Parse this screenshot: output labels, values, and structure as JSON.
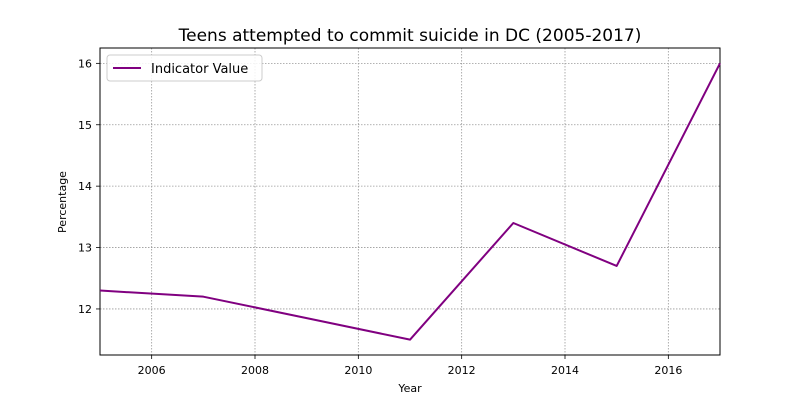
{
  "chart_data": {
    "type": "line",
    "title": "Teens attempted to commit suicide in DC (2005-2017)",
    "xlabel": "Year",
    "ylabel": "Percentage",
    "xlim": [
      2005,
      2017
    ],
    "ylim": [
      11.25,
      16.25
    ],
    "xticks": [
      2006,
      2008,
      2010,
      2012,
      2014,
      2016
    ],
    "yticks": [
      12,
      13,
      14,
      15,
      16
    ],
    "grid": true,
    "legend_position": "upper-left",
    "series": [
      {
        "name": "Indicator Value",
        "color": "#800080",
        "x": [
          2005,
          2007,
          2009,
          2011,
          2013,
          2015,
          2017
        ],
        "y": [
          12.3,
          12.2,
          11.85,
          11.5,
          13.4,
          12.7,
          16.0
        ]
      }
    ]
  }
}
